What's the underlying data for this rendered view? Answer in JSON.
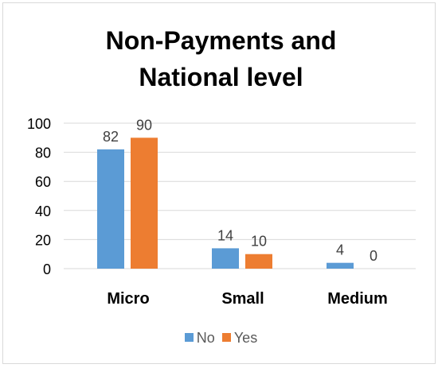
{
  "chart_data": {
    "type": "bar",
    "title_lines": [
      "Non-Payments and",
      "National level"
    ],
    "categories": [
      "Micro",
      "Small",
      "Medium"
    ],
    "series": [
      {
        "name": "No",
        "color": "#5b9bd5",
        "values": [
          82,
          14,
          4
        ]
      },
      {
        "name": "Yes",
        "color": "#ed7d31",
        "values": [
          90,
          10,
          0
        ]
      }
    ],
    "ylim": [
      0,
      100
    ],
    "yticks": [
      "0",
      "20",
      "40",
      "60",
      "80",
      "100"
    ],
    "grid": true,
    "legend": "bottom"
  }
}
